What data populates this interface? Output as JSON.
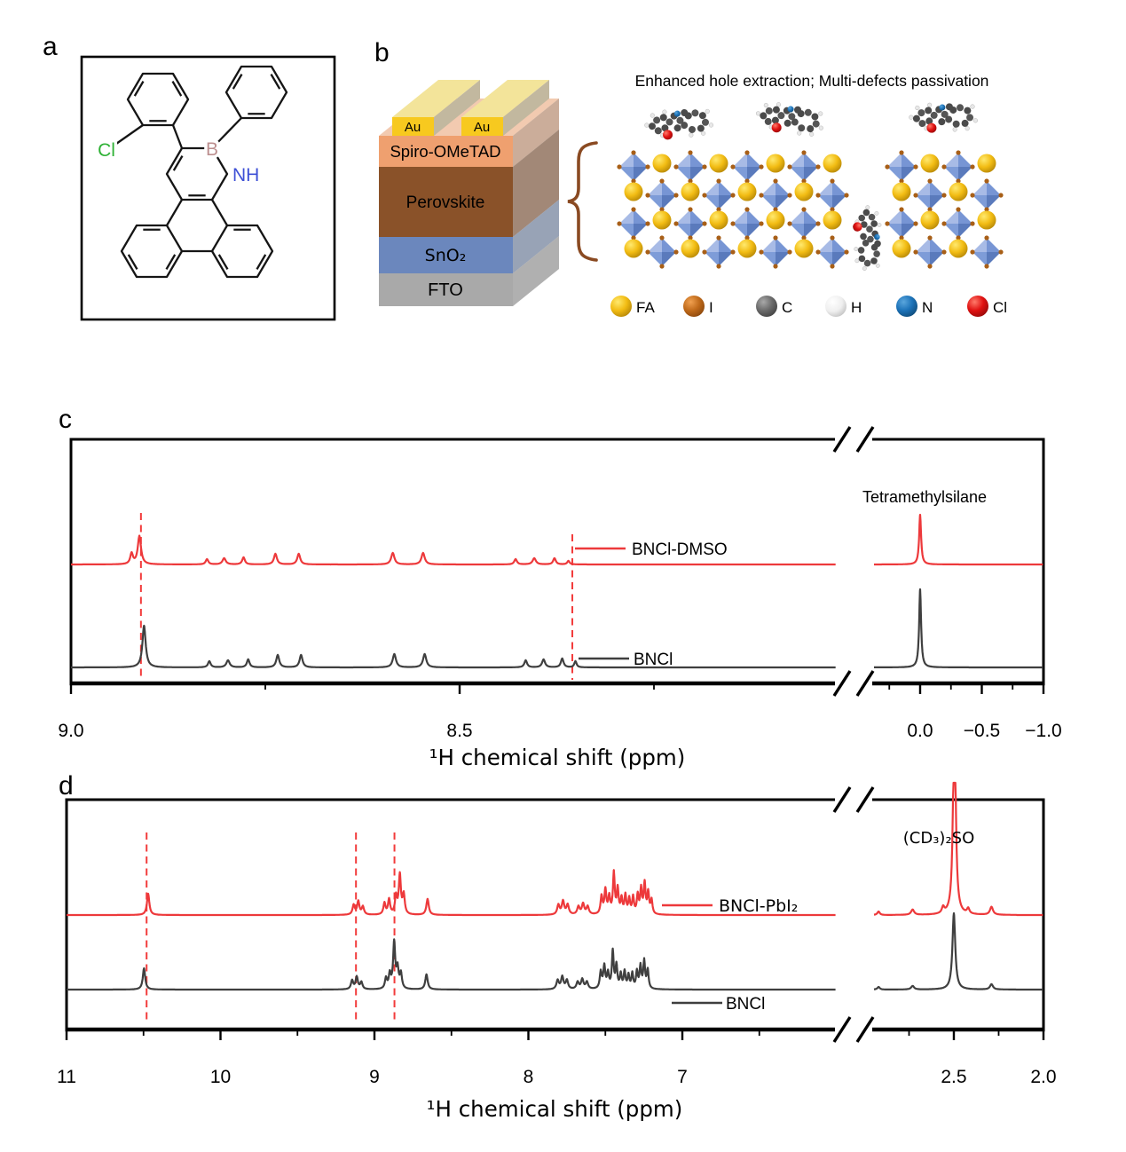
{
  "panels": {
    "a": {
      "label": "a",
      "atoms": {
        "cl": "Cl",
        "b": "B",
        "nh": "NH"
      },
      "atom_colors": {
        "cl": "#2eb135",
        "b": "#bc8f8f",
        "nh": "#3f51d6"
      }
    },
    "b": {
      "label": "b",
      "title": "Enhanced hole extraction; Multi-defects passivation",
      "stack": {
        "au_left": "Au",
        "au_right": "Au",
        "au_color": "#f7c91f",
        "layers": [
          {
            "name": "Spiro-OMeTAD",
            "color": "#efa06f"
          },
          {
            "name": "Perovskite",
            "color": "#8a5229"
          },
          {
            "name": "SnO₂",
            "color": "#6b87bd"
          },
          {
            "name": "FTO",
            "color": "#a9a9a9"
          }
        ]
      },
      "legend": [
        {
          "label": "FA",
          "color": "#f2bc13",
          "grad": "gFA"
        },
        {
          "label": "I",
          "color": "#c06a1a",
          "grad": "gI"
        },
        {
          "label": "C",
          "color": "#6b6b6b",
          "grad": "gC"
        },
        {
          "label": "H",
          "color": "#f2f2f2",
          "grad": "gH"
        },
        {
          "label": "N",
          "color": "#1c72b8",
          "grad": "gN"
        },
        {
          "label": "Cl",
          "color": "#e01111",
          "grad": "gCl"
        }
      ]
    },
    "c": {
      "label": "c"
    },
    "d": {
      "label": "d"
    }
  },
  "chart_data": [
    {
      "panel": "c",
      "type": "line",
      "xlabel": "¹H chemical shift (ppm)",
      "ylabel": "",
      "grid": false,
      "axis_break": true,
      "annotation": "Tetramethylsilane",
      "segments": [
        {
          "ppm_start": 9.0,
          "ppm_end": 8.02
        },
        {
          "ppm_start": 0.37,
          "ppm_end": -1.0
        }
      ],
      "x_ticks": [
        {
          "ppm": 9.0,
          "label": "9.0"
        },
        {
          "ppm": 8.5,
          "label": "8.5"
        },
        {
          "ppm": 0.0,
          "label": "0.0"
        },
        {
          "ppm": -0.5,
          "label": "−0.5"
        },
        {
          "ppm": -1.0,
          "label": "−1.0"
        }
      ],
      "x_minor_ticks": [
        8.75,
        8.25,
        0.25,
        -0.25,
        -0.75
      ],
      "dashed_guides_ppm": [
        8.91,
        8.355
      ],
      "peaks_format": "[ppm, intensity, half_width]",
      "series": [
        {
          "name": "BNCl-DMSO",
          "color": "#ed393b",
          "peaks": [
            [
              8.912,
              32,
              2.2
            ],
            [
              8.922,
              12,
              1.8
            ],
            [
              8.825,
              6,
              1.8
            ],
            [
              8.803,
              7,
              2.2
            ],
            [
              8.778,
              8,
              1.8
            ],
            [
              8.737,
              12,
              2.0
            ],
            [
              8.707,
              12,
              2.0
            ],
            [
              8.586,
              13,
              2.2
            ],
            [
              8.547,
              13,
              2.2
            ],
            [
              8.428,
              6,
              1.8
            ],
            [
              8.404,
              7,
              2.2
            ],
            [
              8.378,
              7,
              1.8
            ],
            [
              8.36,
              4,
              1.6
            ],
            [
              0.0,
              56,
              1.3
            ]
          ]
        },
        {
          "name": "BNCl",
          "color": "#3f3f3f",
          "peaks": [
            [
              8.906,
              47,
              2.2
            ],
            [
              8.822,
              7,
              1.8
            ],
            [
              8.798,
              8,
              2.2
            ],
            [
              8.772,
              9,
              1.8
            ],
            [
              8.734,
              14,
              2.0
            ],
            [
              8.704,
              14,
              2.0
            ],
            [
              8.584,
              15,
              2.2
            ],
            [
              8.545,
              15,
              2.2
            ],
            [
              8.415,
              8,
              1.8
            ],
            [
              8.392,
              9,
              2.0
            ],
            [
              8.368,
              10,
              1.8
            ],
            [
              8.351,
              7,
              1.5
            ],
            [
              0.0,
              88,
              1.3
            ]
          ]
        }
      ]
    },
    {
      "panel": "d",
      "type": "line",
      "xlabel": "¹H chemical shift (ppm)",
      "ylabel": "",
      "grid": false,
      "axis_break": true,
      "annotation": "(CD₃)₂SO",
      "segments": [
        {
          "ppm_start": 11.0,
          "ppm_end": 6.0
        },
        {
          "ppm_start": 2.95,
          "ppm_end": 2.0
        }
      ],
      "x_ticks": [
        {
          "ppm": 11,
          "label": "11"
        },
        {
          "ppm": 10,
          "label": "10"
        },
        {
          "ppm": 9,
          "label": "9"
        },
        {
          "ppm": 8,
          "label": "8"
        },
        {
          "ppm": 7,
          "label": "7"
        },
        {
          "ppm": 2.5,
          "label": "2.5"
        },
        {
          "ppm": 2.0,
          "label": "2.0"
        }
      ],
      "x_minor_ticks": [
        10.5,
        9.5,
        8.5,
        7.5,
        6.5,
        2.75,
        2.25
      ],
      "dashed_guides_ppm": [
        10.48,
        9.12,
        8.87
      ],
      "peaks_format": "[ppm, intensity, half_width]",
      "series": [
        {
          "name": "BNCl-PbI₂",
          "color": "#ed393b",
          "peaks": [
            [
              10.47,
              24,
              1.6
            ],
            [
              9.135,
              11,
              1.5
            ],
            [
              9.105,
              15,
              1.5
            ],
            [
              9.075,
              9,
              1.5
            ],
            [
              8.935,
              13,
              1.4
            ],
            [
              8.905,
              17,
              1.4
            ],
            [
              8.86,
              20,
              1.4
            ],
            [
              8.835,
              44,
              1.4
            ],
            [
              8.81,
              22,
              1.4
            ],
            [
              8.655,
              18,
              1.6
            ],
            [
              7.805,
              11,
              1.6
            ],
            [
              7.775,
              15,
              1.6
            ],
            [
              7.745,
              11,
              1.6
            ],
            [
              7.675,
              9,
              1.6
            ],
            [
              7.645,
              12,
              1.6
            ],
            [
              7.615,
              9,
              1.6
            ],
            [
              7.525,
              20,
              1.3
            ],
            [
              7.5,
              27,
              1.3
            ],
            [
              7.475,
              19,
              1.3
            ],
            [
              7.445,
              46,
              1.2
            ],
            [
              7.42,
              28,
              1.2
            ],
            [
              7.395,
              17,
              1.2
            ],
            [
              7.37,
              21,
              1.2
            ],
            [
              7.345,
              17,
              1.2
            ],
            [
              7.32,
              19,
              1.2
            ],
            [
              7.29,
              21,
              1.2
            ],
            [
              7.268,
              28,
              1.2
            ],
            [
              7.245,
              34,
              1.2
            ],
            [
              7.222,
              24,
              1.2
            ],
            [
              7.2,
              16,
              1.2
            ],
            [
              2.92,
              4,
              1.6
            ],
            [
              2.73,
              6,
              2.0
            ],
            [
              2.56,
              7,
              1.6
            ],
            [
              2.497,
              260,
              1.6
            ],
            [
              2.42,
              6,
              1.6
            ],
            [
              2.29,
              9,
              2.0
            ]
          ]
        },
        {
          "name": "BNCl",
          "color": "#3f3f3f",
          "peaks": [
            [
              10.497,
              24,
              1.6
            ],
            [
              9.145,
              10,
              1.5
            ],
            [
              9.115,
              14,
              1.5
            ],
            [
              9.085,
              8,
              1.5
            ],
            [
              8.925,
              12,
              1.4
            ],
            [
              8.9,
              16,
              1.4
            ],
            [
              8.872,
              52,
              1.4
            ],
            [
              8.85,
              22,
              1.4
            ],
            [
              8.828,
              17,
              1.4
            ],
            [
              8.662,
              17,
              1.6
            ],
            [
              7.81,
              10,
              1.6
            ],
            [
              7.78,
              14,
              1.6
            ],
            [
              7.75,
              10,
              1.6
            ],
            [
              7.68,
              8,
              1.6
            ],
            [
              7.65,
              11,
              1.6
            ],
            [
              7.62,
              8,
              1.6
            ],
            [
              7.53,
              19,
              1.3
            ],
            [
              7.507,
              25,
              1.3
            ],
            [
              7.483,
              17,
              1.3
            ],
            [
              7.452,
              42,
              1.2
            ],
            [
              7.428,
              26,
              1.2
            ],
            [
              7.4,
              16,
              1.2
            ],
            [
              7.375,
              19,
              1.2
            ],
            [
              7.35,
              15,
              1.2
            ],
            [
              7.325,
              17,
              1.2
            ],
            [
              7.295,
              19,
              1.2
            ],
            [
              7.272,
              25,
              1.2
            ],
            [
              7.248,
              31,
              1.2
            ],
            [
              7.225,
              21,
              1.2
            ],
            [
              2.92,
              3,
              1.6
            ],
            [
              2.73,
              4,
              2.0
            ],
            [
              2.5,
              86,
              1.9
            ],
            [
              2.29,
              6,
              2.0
            ]
          ]
        }
      ]
    }
  ]
}
